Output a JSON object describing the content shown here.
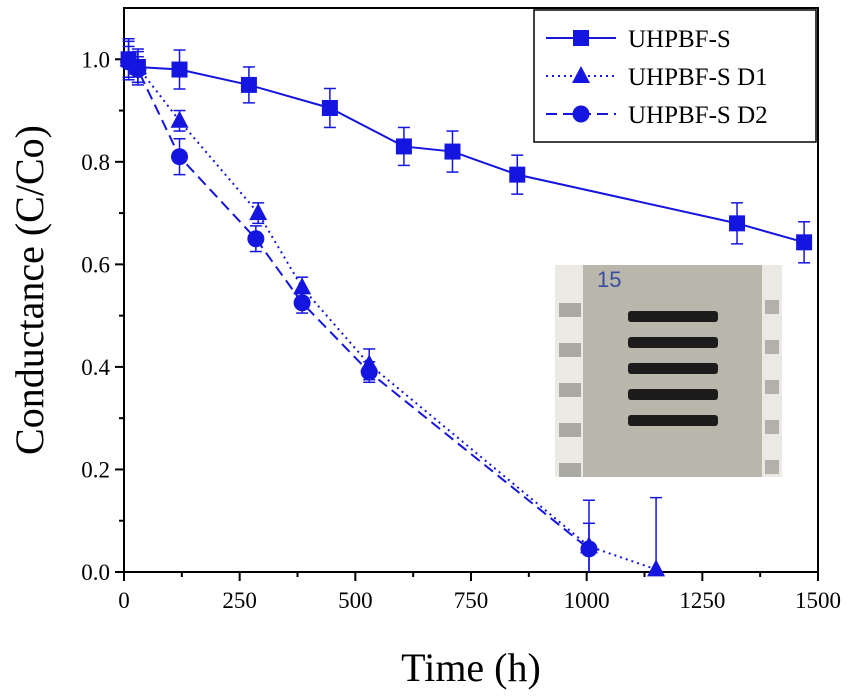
{
  "chart_data": {
    "type": "line",
    "title": "",
    "xlabel": "Time (h)",
    "ylabel": "Conductance (C/Co)",
    "xlim": [
      0,
      1500
    ],
    "ylim": [
      0,
      1.1
    ],
    "xticks": [
      "0",
      "250",
      "500",
      "750",
      "1000",
      "1250",
      "1500"
    ],
    "yticks": [
      "0.0",
      "0.2",
      "0.4",
      "0.6",
      "0.8",
      "1.0"
    ],
    "grid": false,
    "legend_position": "top-right",
    "series": [
      {
        "name": "UHPBF-S",
        "marker": "square",
        "line_style": "solid",
        "color": "#1515e0",
        "x": [
          10,
          30,
          120,
          270,
          445,
          605,
          710,
          850,
          1325,
          1470
        ],
        "y": [
          1.0,
          0.985,
          0.98,
          0.95,
          0.905,
          0.83,
          0.82,
          0.775,
          0.68,
          0.643
        ],
        "err": [
          0.04,
          0.035,
          0.038,
          0.035,
          0.038,
          0.037,
          0.04,
          0.038,
          0.04,
          0.04
        ]
      },
      {
        "name": "UHPBF-S D1",
        "marker": "triangle",
        "line_style": "dotted",
        "color": "#1515e0",
        "x": [
          10,
          30,
          120,
          290,
          385,
          530,
          1005,
          1150
        ],
        "y": [
          1.0,
          0.985,
          0.88,
          0.7,
          0.555,
          0.405,
          0.05,
          0.005
        ],
        "err": [
          0.035,
          0.03,
          0.02,
          0.02,
          0.02,
          0.03,
          0.09,
          0.14
        ]
      },
      {
        "name": "UHPBF-S D2",
        "marker": "circle",
        "line_style": "dashed",
        "color": "#1515e0",
        "x": [
          10,
          30,
          120,
          285,
          385,
          530,
          1005
        ],
        "y": [
          0.995,
          0.98,
          0.81,
          0.65,
          0.525,
          0.39,
          0.045
        ],
        "err": [
          0.03,
          0.025,
          0.035,
          0.025,
          0.02,
          0.02,
          0.05
        ]
      }
    ],
    "inset": {
      "kind": "photo",
      "label": "15",
      "stripe_count": 5,
      "colors": {
        "board": "#b9b6ab",
        "stripe": "#1c1c1c",
        "edge": "#ebe9e3",
        "label": "#3a4ea0"
      }
    }
  }
}
